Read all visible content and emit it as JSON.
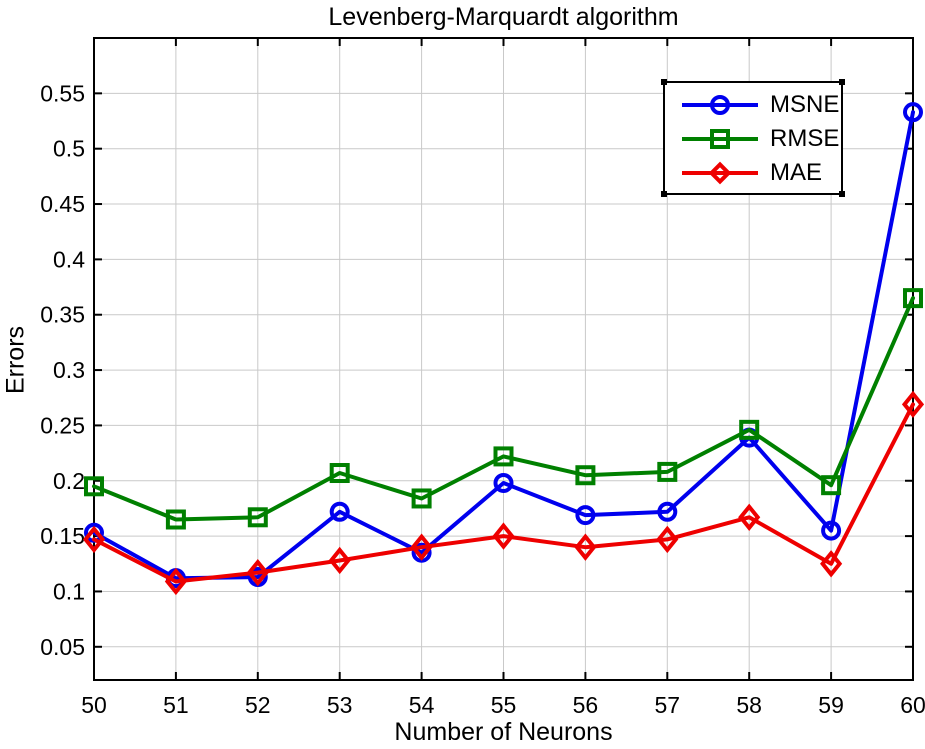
{
  "chart_data": {
    "type": "line",
    "title": "Levenberg-Marquardt algorithm",
    "xlabel": "Number of Neurons",
    "ylabel": "Errors",
    "x": [
      50,
      51,
      52,
      53,
      54,
      55,
      56,
      57,
      58,
      59,
      60
    ],
    "series": [
      {
        "name": "MSNE",
        "color": "#0000ee",
        "marker": "circle",
        "values": [
          0.153,
          0.112,
          0.113,
          0.172,
          0.135,
          0.198,
          0.169,
          0.172,
          0.239,
          0.155,
          0.533
        ]
      },
      {
        "name": "RMSE",
        "color": "#008000",
        "marker": "square",
        "values": [
          0.195,
          0.165,
          0.167,
          0.207,
          0.184,
          0.222,
          0.205,
          0.208,
          0.246,
          0.196,
          0.365
        ]
      },
      {
        "name": "MAE",
        "color": "#ee0000",
        "marker": "diamond",
        "values": [
          0.147,
          0.109,
          0.117,
          0.128,
          0.14,
          0.15,
          0.14,
          0.147,
          0.167,
          0.125,
          0.269
        ]
      }
    ],
    "xlim": [
      50,
      60
    ],
    "ylim": [
      0.02,
      0.6
    ],
    "xticks": [
      50,
      51,
      52,
      53,
      54,
      55,
      56,
      57,
      58,
      59,
      60
    ],
    "xtick_labels": [
      "50",
      "51",
      "52",
      "53",
      "54",
      "55",
      "56",
      "57",
      "58",
      "59",
      "60"
    ],
    "yticks": [
      0.05,
      0.1,
      0.15,
      0.2,
      0.25,
      0.3,
      0.35,
      0.4,
      0.45,
      0.5,
      0.55
    ],
    "ytick_labels": [
      "0.05",
      "0.1",
      "0.15",
      "0.2",
      "0.25",
      "0.3",
      "0.35",
      "0.4",
      "0.45",
      "0.5",
      "0.55"
    ],
    "grid": true,
    "grid_color": "#c9c9c9",
    "axis_color": "#000000",
    "background_color": "#ffffff",
    "legend_position": "upper right",
    "legend_entries": [
      "MSNE",
      "RMSE",
      "MAE"
    ]
  }
}
